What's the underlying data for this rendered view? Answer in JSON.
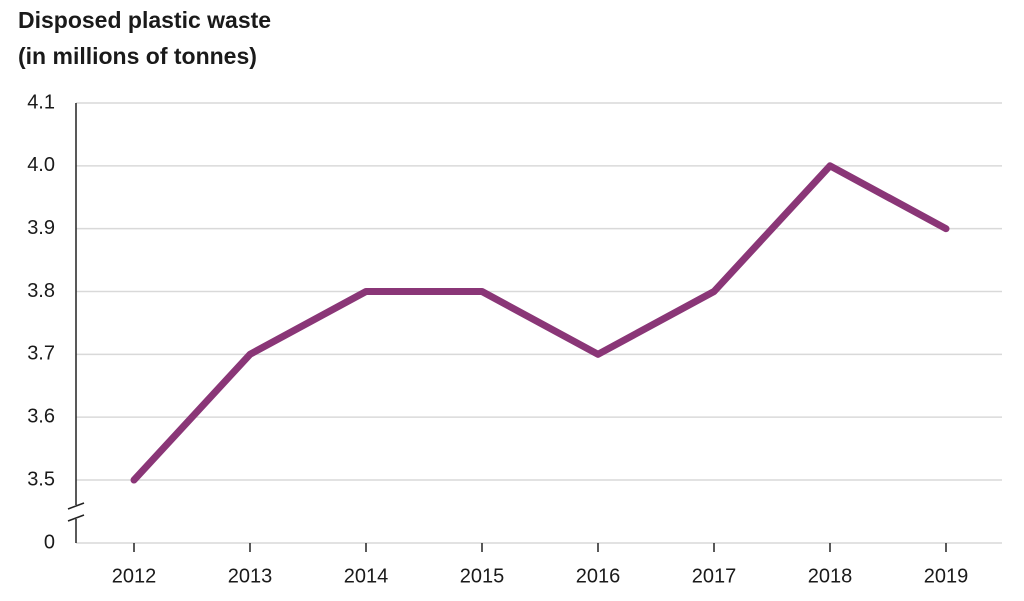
{
  "chart_data": {
    "type": "line",
    "title": "Disposed plastic waste",
    "subtitle": "(in millions of tonnes)",
    "categories": [
      "2012",
      "2013",
      "2014",
      "2015",
      "2016",
      "2017",
      "2018",
      "2019"
    ],
    "values": [
      3.5,
      3.7,
      3.8,
      3.8,
      3.7,
      3.8,
      4.0,
      3.9
    ],
    "color": "#8a3677",
    "ylim": [
      0,
      4.1
    ],
    "yticks": [
      0,
      3.5,
      3.6,
      3.7,
      3.8,
      3.9,
      {
        "value": 4,
        "label": "4.0"
      },
      4.1
    ],
    "y_axis_break": true,
    "grid": true
  }
}
